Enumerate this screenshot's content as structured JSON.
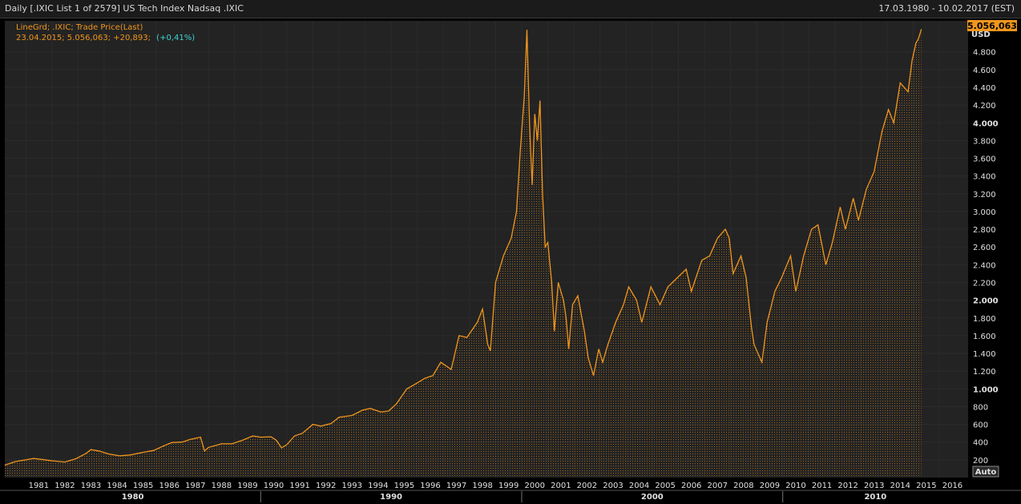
{
  "header": {
    "title": "Daily [.IXIC List 1 of 2579] US Tech Index Nadsaq .IXIC",
    "date_range": "17.03.1980 - 10.02.2017 (EST)"
  },
  "legend": {
    "line1": "LineGrd; .IXIC; Trade Price(Last)",
    "line2_main": "23.04.2015; 5.056,063; +20,893;",
    "line2_pct": "(+0,41%)"
  },
  "last_price_label": "5.056,063",
  "currency_label": "USD",
  "auto_button_label": "Auto",
  "colors": {
    "line": "#f0961e",
    "legend_text": "#f0961e",
    "pct_text": "#3fd4d4",
    "background": "#000000",
    "grid": "#2b2b2b",
    "axis_text": "#e0e0e0"
  },
  "chart_data": {
    "type": "area",
    "title": "",
    "xlabel": "",
    "ylabel": "USD",
    "xlim": [
      1980.2,
      2017.1
    ],
    "ylim": [
      0,
      5150
    ],
    "grid": true,
    "y_ticks": [
      200,
      400,
      600,
      800,
      1000,
      1200,
      1400,
      1600,
      1800,
      2000,
      2200,
      2400,
      2600,
      2800,
      3000,
      3200,
      3400,
      3600,
      3800,
      4000,
      4200,
      4400,
      4600,
      4800
    ],
    "y_tick_labels": [
      "200",
      "400",
      "600",
      "800",
      "1.000",
      "1.200",
      "1.400",
      "1.600",
      "1.800",
      "2.000",
      "2.200",
      "2.400",
      "2.600",
      "2.800",
      "3.000",
      "3.200",
      "3.400",
      "3.600",
      "3.800",
      "4.000",
      "4.200",
      "4.400",
      "4.600",
      "4.800"
    ],
    "y_bold_ticks": [
      "1.000",
      "2.000",
      "4.000"
    ],
    "x_year_ticks": [
      "1981",
      "1982",
      "1983",
      "1984",
      "1985",
      "1986",
      "1987",
      "1988",
      "1989",
      "1990",
      "1991",
      "1992",
      "1993",
      "1994",
      "1995",
      "1996",
      "1997",
      "1998",
      "1999",
      "2000",
      "2001",
      "2002",
      "2003",
      "2004",
      "2005",
      "2006",
      "2007",
      "2008",
      "2009",
      "2010",
      "2011",
      "2012",
      "2013",
      "2014",
      "2015",
      "2016"
    ],
    "x_decade_labels": [
      "1980",
      "1990",
      "2000",
      "2010"
    ],
    "series": [
      {
        "values": [
          [
            1980.2,
            140
          ],
          [
            1980.6,
            180
          ],
          [
            1981.0,
            200
          ],
          [
            1981.3,
            215
          ],
          [
            1981.6,
            205
          ],
          [
            1982.0,
            190
          ],
          [
            1982.5,
            175
          ],
          [
            1982.9,
            210
          ],
          [
            1983.3,
            270
          ],
          [
            1983.5,
            315
          ],
          [
            1983.8,
            300
          ],
          [
            1984.2,
            265
          ],
          [
            1984.6,
            245
          ],
          [
            1985.0,
            255
          ],
          [
            1985.5,
            285
          ],
          [
            1985.9,
            305
          ],
          [
            1986.3,
            360
          ],
          [
            1986.6,
            395
          ],
          [
            1987.0,
            400
          ],
          [
            1987.3,
            430
          ],
          [
            1987.7,
            455
          ],
          [
            1987.8,
            350
          ],
          [
            1987.85,
            300
          ],
          [
            1988.0,
            340
          ],
          [
            1988.5,
            380
          ],
          [
            1988.9,
            380
          ],
          [
            1989.3,
            420
          ],
          [
            1989.7,
            470
          ],
          [
            1990.0,
            455
          ],
          [
            1990.4,
            460
          ],
          [
            1990.6,
            420
          ],
          [
            1990.8,
            335
          ],
          [
            1991.0,
            370
          ],
          [
            1991.3,
            470
          ],
          [
            1991.6,
            500
          ],
          [
            1992.0,
            600
          ],
          [
            1992.3,
            580
          ],
          [
            1992.7,
            610
          ],
          [
            1993.0,
            680
          ],
          [
            1993.5,
            700
          ],
          [
            1993.9,
            760
          ],
          [
            1994.2,
            780
          ],
          [
            1994.6,
            740
          ],
          [
            1994.9,
            750
          ],
          [
            1995.2,
            830
          ],
          [
            1995.6,
            1000
          ],
          [
            1995.9,
            1050
          ],
          [
            1996.3,
            1120
          ],
          [
            1996.6,
            1150
          ],
          [
            1996.9,
            1300
          ],
          [
            1997.3,
            1220
          ],
          [
            1997.6,
            1600
          ],
          [
            1997.9,
            1580
          ],
          [
            1998.3,
            1750
          ],
          [
            1998.5,
            1900
          ],
          [
            1998.7,
            1500
          ],
          [
            1998.8,
            1430
          ],
          [
            1999.0,
            2200
          ],
          [
            1999.3,
            2500
          ],
          [
            1999.6,
            2700
          ],
          [
            1999.8,
            3000
          ],
          [
            1999.95,
            3700
          ],
          [
            2000.1,
            4300
          ],
          [
            2000.2,
            5050
          ],
          [
            2000.3,
            4000
          ],
          [
            2000.4,
            3300
          ],
          [
            2000.5,
            4100
          ],
          [
            2000.6,
            3800
          ],
          [
            2000.7,
            4250
          ],
          [
            2000.8,
            3200
          ],
          [
            2000.9,
            2600
          ],
          [
            2001.0,
            2650
          ],
          [
            2001.15,
            2200
          ],
          [
            2001.25,
            1650
          ],
          [
            2001.4,
            2200
          ],
          [
            2001.6,
            2000
          ],
          [
            2001.7,
            1800
          ],
          [
            2001.8,
            1450
          ],
          [
            2001.95,
            1950
          ],
          [
            2002.15,
            2050
          ],
          [
            2002.4,
            1650
          ],
          [
            2002.55,
            1350
          ],
          [
            2002.75,
            1150
          ],
          [
            2002.95,
            1450
          ],
          [
            2003.1,
            1300
          ],
          [
            2003.3,
            1500
          ],
          [
            2003.6,
            1750
          ],
          [
            2003.9,
            1950
          ],
          [
            2004.1,
            2150
          ],
          [
            2004.4,
            2000
          ],
          [
            2004.6,
            1750
          ],
          [
            2004.95,
            2150
          ],
          [
            2005.3,
            1950
          ],
          [
            2005.6,
            2150
          ],
          [
            2005.95,
            2250
          ],
          [
            2006.3,
            2350
          ],
          [
            2006.5,
            2100
          ],
          [
            2006.9,
            2450
          ],
          [
            2007.2,
            2500
          ],
          [
            2007.5,
            2700
          ],
          [
            2007.8,
            2800
          ],
          [
            2007.95,
            2700
          ],
          [
            2008.1,
            2300
          ],
          [
            2008.4,
            2500
          ],
          [
            2008.6,
            2250
          ],
          [
            2008.8,
            1700
          ],
          [
            2008.9,
            1500
          ],
          [
            2009.2,
            1300
          ],
          [
            2009.4,
            1750
          ],
          [
            2009.7,
            2100
          ],
          [
            2009.95,
            2250
          ],
          [
            2010.3,
            2500
          ],
          [
            2010.5,
            2100
          ],
          [
            2010.8,
            2500
          ],
          [
            2011.1,
            2800
          ],
          [
            2011.35,
            2850
          ],
          [
            2011.65,
            2400
          ],
          [
            2011.9,
            2650
          ],
          [
            2012.2,
            3050
          ],
          [
            2012.4,
            2800
          ],
          [
            2012.7,
            3150
          ],
          [
            2012.9,
            2900
          ],
          [
            2013.2,
            3250
          ],
          [
            2013.5,
            3450
          ],
          [
            2013.8,
            3900
          ],
          [
            2014.05,
            4150
          ],
          [
            2014.25,
            4000
          ],
          [
            2014.5,
            4450
          ],
          [
            2014.8,
            4350
          ],
          [
            2014.95,
            4700
          ],
          [
            2015.1,
            4900
          ],
          [
            2015.2,
            4950
          ],
          [
            2015.31,
            5056
          ]
        ]
      }
    ]
  }
}
